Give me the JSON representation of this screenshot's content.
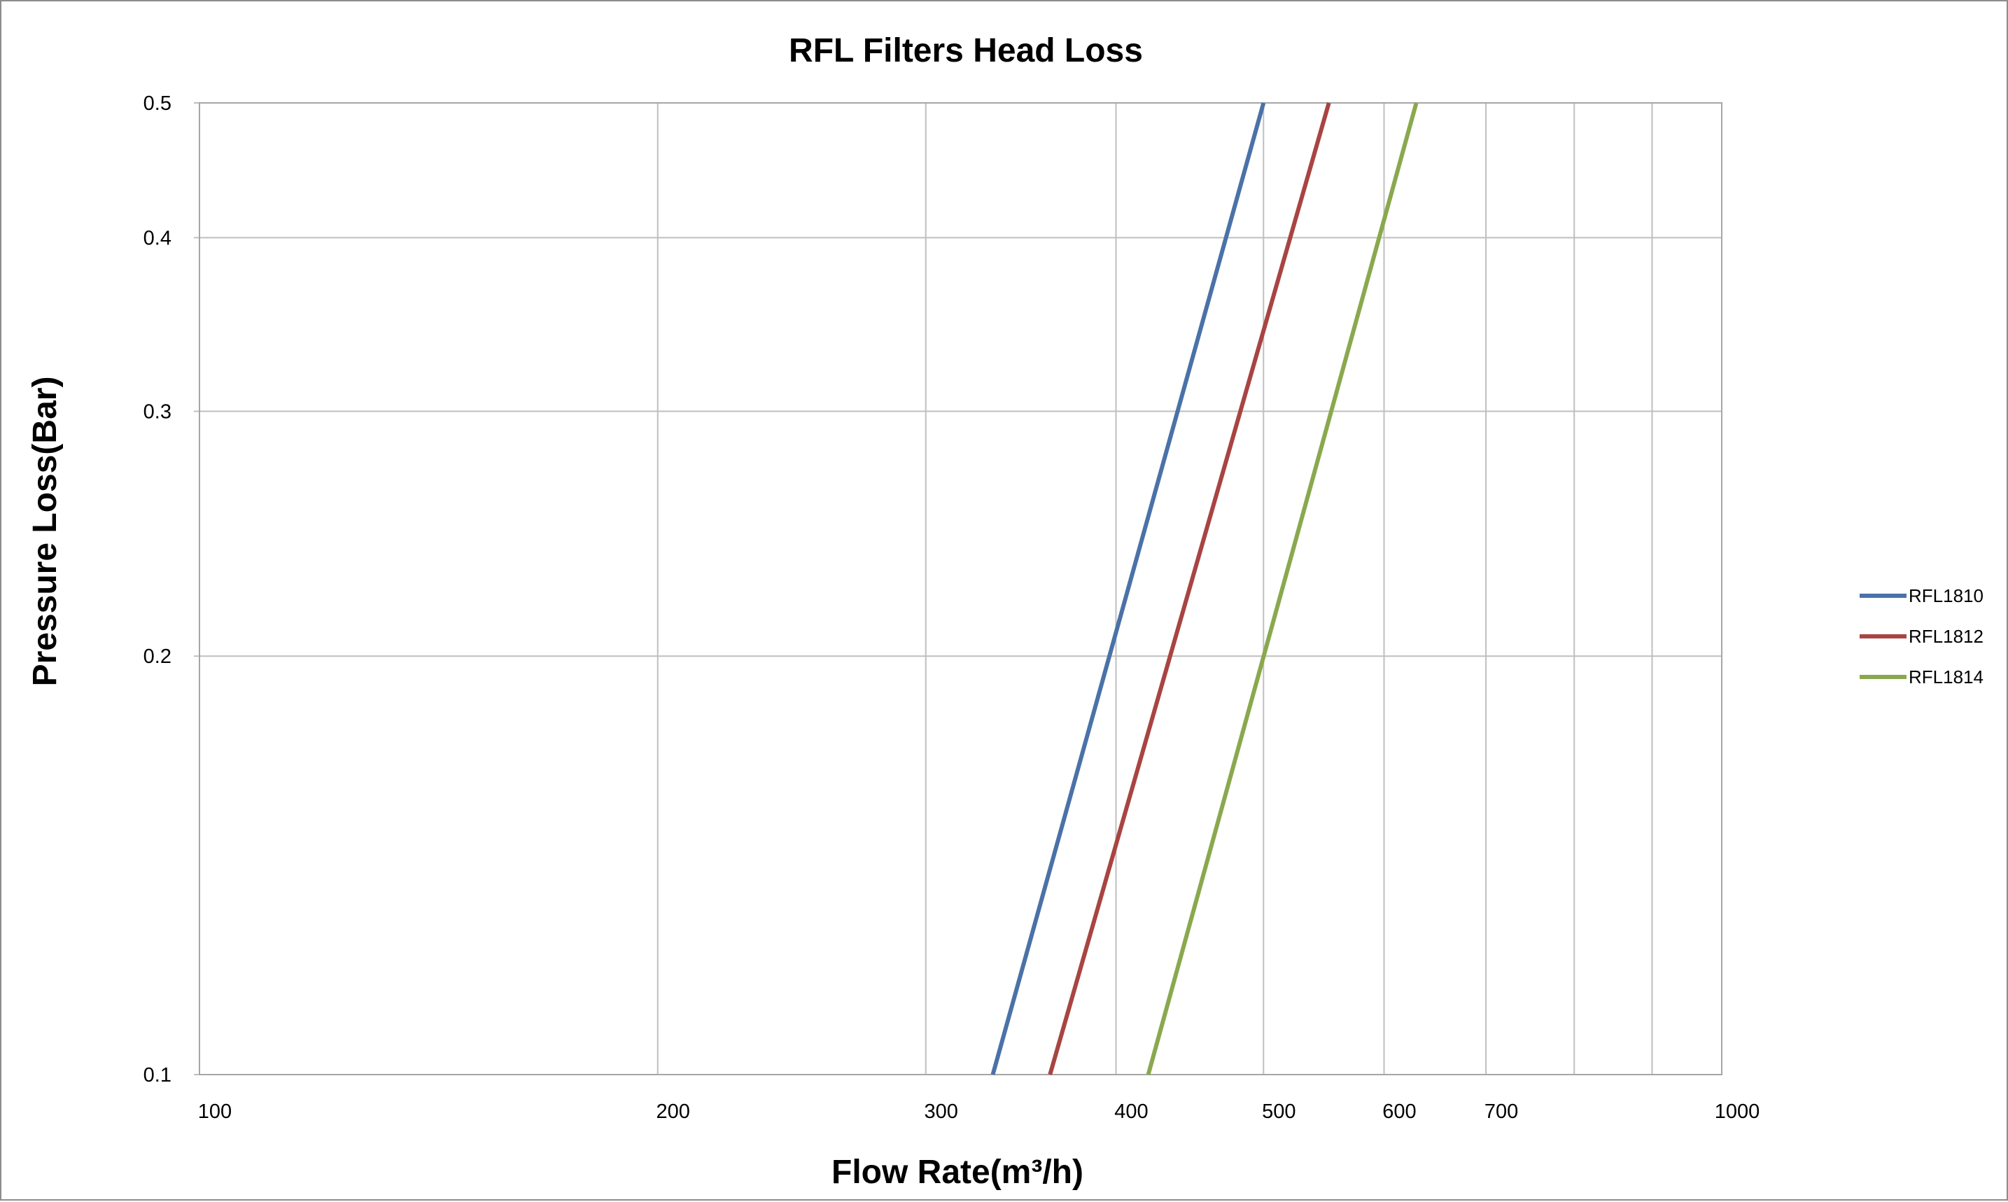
{
  "chart_data": {
    "type": "line",
    "title": "RFL Filters Head Loss",
    "xlabel": "Flow Rate(m³/h)",
    "ylabel": "Pressure Loss(Bar)",
    "x_scale": "log",
    "y_scale": "log",
    "xlim": [
      100,
      1000
    ],
    "ylim": [
      0.1,
      0.5
    ],
    "x_ticks": [
      {
        "value": 100,
        "label": "100"
      },
      {
        "value": 200,
        "label": "200"
      },
      {
        "value": 300,
        "label": "300"
      },
      {
        "value": 400,
        "label": "400"
      },
      {
        "value": 500,
        "label": "500"
      },
      {
        "value": 600,
        "label": "600"
      },
      {
        "value": 700,
        "label": "700"
      },
      {
        "value": 800,
        "label": ""
      },
      {
        "value": 900,
        "label": ""
      },
      {
        "value": 1000,
        "label": "1000"
      }
    ],
    "y_ticks": [
      {
        "value": 0.1,
        "label": "0.1"
      },
      {
        "value": 0.2,
        "label": "0.2"
      },
      {
        "value": 0.3,
        "label": "0.3"
      },
      {
        "value": 0.4,
        "label": "0.4"
      },
      {
        "value": 0.5,
        "label": "0.5"
      }
    ],
    "grid": true,
    "legend_position": "right",
    "series": [
      {
        "name": "RFL1810",
        "color": "#4a72a8",
        "points": [
          [
            332,
            0.1
          ],
          [
            500,
            0.5
          ]
        ]
      },
      {
        "name": "RFL1812",
        "color": "#a84442",
        "points": [
          [
            362,
            0.1
          ],
          [
            552,
            0.5
          ]
        ]
      },
      {
        "name": "RFL1814",
        "color": "#8aa84e",
        "points": [
          [
            420,
            0.1
          ],
          [
            630,
            0.5
          ]
        ]
      }
    ]
  }
}
